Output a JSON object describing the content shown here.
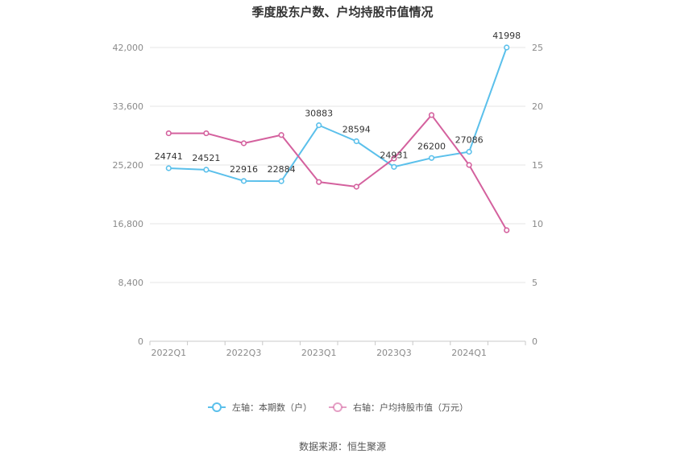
{
  "chart_data": {
    "type": "line",
    "title": "季度股东户数、户均持股市值情况",
    "categories": [
      "2022Q1",
      "2022Q2",
      "2022Q3",
      "2022Q4",
      "2023Q1",
      "2023Q2",
      "2023Q3",
      "2023Q4",
      "2024Q1",
      "2024Q2"
    ],
    "x_tick_labels": [
      "2022Q1",
      "",
      "2022Q3",
      "",
      "2023Q1",
      "",
      "2023Q3",
      "",
      "2024Q1",
      ""
    ],
    "left_axis": {
      "ylim": [
        0,
        42000
      ],
      "ticks": [
        "0",
        "8,400",
        "16,800",
        "25,200",
        "33,600",
        "42,000"
      ],
      "tick_values": [
        0,
        8400,
        16800,
        25200,
        33600,
        42000
      ]
    },
    "right_axis": {
      "ylim": [
        0,
        25
      ],
      "ticks": [
        "0",
        "5",
        "10",
        "15",
        "20",
        "25"
      ],
      "tick_values": [
        0,
        5,
        10,
        15,
        20,
        25
      ]
    },
    "series": [
      {
        "name": "左轴：本期数（户）",
        "axis": "left",
        "color": "#5bc0eb",
        "values": [
          24741,
          24521,
          22916,
          22884,
          30883,
          28594,
          24931,
          26200,
          27086,
          41998
        ],
        "labels": [
          "24741",
          "24521",
          "22916",
          "22884",
          "30883",
          "28594",
          "24931",
          "26200",
          "27086",
          "41998"
        ]
      },
      {
        "name": "右轴：户均持股市值（万元）",
        "axis": "right",
        "color": "#d4619e",
        "values": [
          17.7,
          17.7,
          16.85,
          17.55,
          13.55,
          13.15,
          15.55,
          19.25,
          15.0,
          9.45
        ]
      }
    ],
    "grid": true,
    "legend_position": "bottom"
  },
  "source_text": "数据来源：恒生聚源"
}
